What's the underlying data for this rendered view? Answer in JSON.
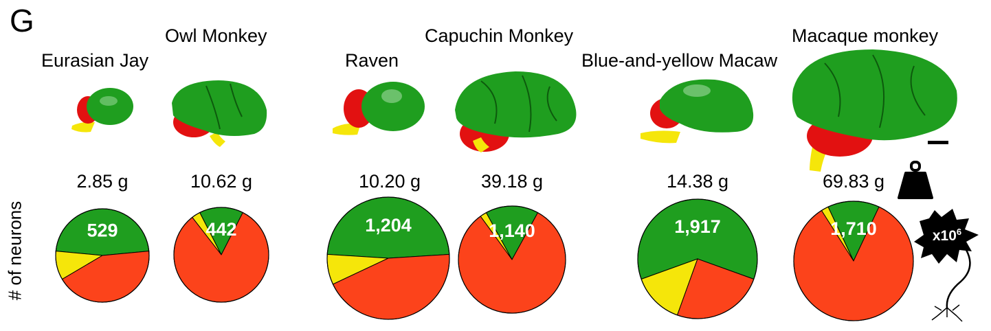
{
  "panel_letter": "G",
  "y_axis_label": "# of neurons",
  "mass_unit_icon": "weight-icon",
  "neuron_icon": "neuron-icon",
  "neuron_multiplier": "x10",
  "neuron_multiplier_exp": "6",
  "colors": {
    "green": "#1f9e1f",
    "yellow": "#f5e60a",
    "red": "#fc431b",
    "outline": "#000000"
  },
  "chart_data": {
    "type": "pie",
    "xlabel": "",
    "ylabel": "# of neurons",
    "slice_legend": [
      "green",
      "yellow",
      "red"
    ],
    "species": [
      {
        "name": "Eurasian Jay",
        "mass": "2.85 g",
        "label": "529",
        "fractions": {
          "green": 0.47,
          "yellow": 0.1,
          "red": 0.43
        }
      },
      {
        "name": "Owl Monkey",
        "mass": "10.62 g",
        "label": "442",
        "fractions": {
          "green": 0.15,
          "yellow": 0.03,
          "red": 0.82
        }
      },
      {
        "name": "Raven",
        "mass": "10.20 g",
        "label": "1,204",
        "fractions": {
          "green": 0.48,
          "yellow": 0.08,
          "red": 0.44
        }
      },
      {
        "name": "Capuchin Monkey",
        "mass": "39.18 g",
        "label": "1,140",
        "fractions": {
          "green": 0.16,
          "yellow": 0.02,
          "red": 0.82
        }
      },
      {
        "name": "Blue-and-yellow Macaw",
        "mass": "14.38 g",
        "label": "1,917",
        "fractions": {
          "green": 0.61,
          "yellow": 0.14,
          "red": 0.25
        }
      },
      {
        "name": "Macaque monkey",
        "mass": "69.83 g",
        "label": "1,710",
        "fractions": {
          "green": 0.14,
          "yellow": 0.02,
          "red": 0.84
        }
      }
    ]
  }
}
